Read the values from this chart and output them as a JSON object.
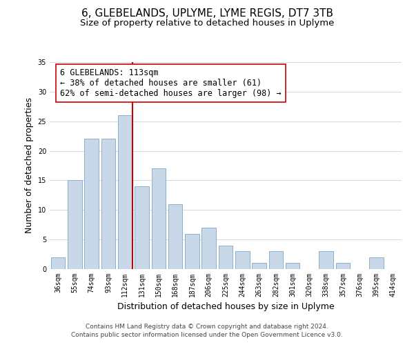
{
  "title": "6, GLEBELANDS, UPLYME, LYME REGIS, DT7 3TB",
  "subtitle": "Size of property relative to detached houses in Uplyme",
  "xlabel": "Distribution of detached houses by size in Uplyme",
  "ylabel": "Number of detached properties",
  "categories": [
    "36sqm",
    "55sqm",
    "74sqm",
    "93sqm",
    "112sqm",
    "131sqm",
    "150sqm",
    "168sqm",
    "187sqm",
    "206sqm",
    "225sqm",
    "244sqm",
    "263sqm",
    "282sqm",
    "301sqm",
    "320sqm",
    "338sqm",
    "357sqm",
    "376sqm",
    "395sqm",
    "414sqm"
  ],
  "values": [
    2,
    15,
    22,
    22,
    26,
    14,
    17,
    11,
    6,
    7,
    4,
    3,
    1,
    3,
    1,
    0,
    3,
    1,
    0,
    2,
    0
  ],
  "bar_color": "#c8d8e8",
  "bar_edge_color": "#8ab0cc",
  "property_line_color": "#cc0000",
  "annotation_text": "6 GLEBELANDS: 113sqm\n← 38% of detached houses are smaller (61)\n62% of semi-detached houses are larger (98) →",
  "annotation_box_color": "#ffffff",
  "annotation_box_edge_color": "#cc0000",
  "ylim": [
    0,
    35
  ],
  "yticks": [
    0,
    5,
    10,
    15,
    20,
    25,
    30,
    35
  ],
  "footnote1": "Contains HM Land Registry data © Crown copyright and database right 2024.",
  "footnote2": "Contains public sector information licensed under the Open Government Licence v3.0.",
  "background_color": "#ffffff",
  "grid_color": "#d0dce8",
  "title_fontsize": 11,
  "subtitle_fontsize": 9.5,
  "axis_label_fontsize": 9,
  "tick_fontsize": 7,
  "annotation_fontsize": 8.5,
  "footnote_fontsize": 6.5
}
